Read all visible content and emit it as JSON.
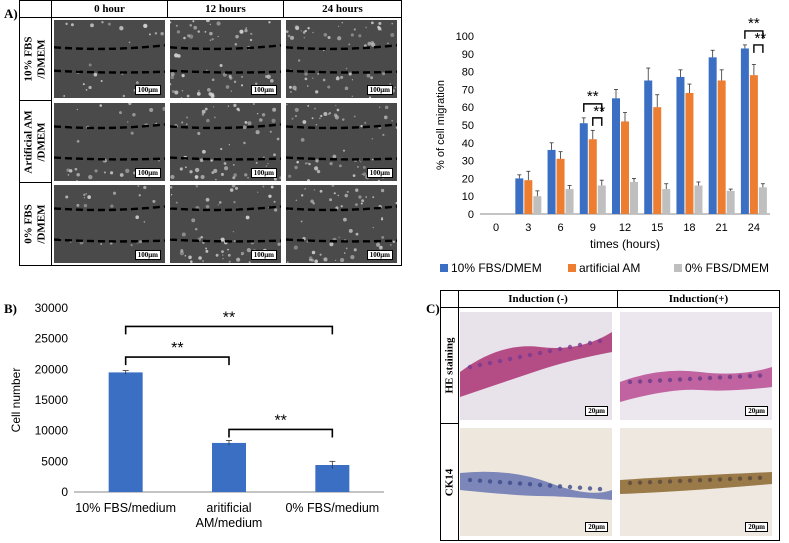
{
  "panel_a": {
    "letter": "A)",
    "headers": [
      "0 hour",
      "12 hours",
      "24 hours"
    ],
    "rows": [
      "10% FBS\n/DMEM",
      "Artificial AM\n/DMEM",
      "0% FBS\n/DMEM"
    ],
    "scale_label": "100μm"
  },
  "panel_b": {
    "letter": "B)"
  },
  "panel_c": {
    "letter": "C)",
    "headers": [
      "Induction (-)",
      "Induction(+)"
    ],
    "rows": [
      "HE staining",
      "CK14"
    ],
    "scale_label": "20μm"
  },
  "colors": {
    "blue": "#3a6fc4",
    "orange": "#ed7d31",
    "gray": "#bfbfbf"
  },
  "chart_data": [
    {
      "type": "bar",
      "title": "",
      "xlabel": "times (hours)",
      "ylabel": "% of cell migration",
      "ylim": [
        0,
        100
      ],
      "yticks": [
        0,
        10,
        20,
        30,
        40,
        50,
        60,
        70,
        80,
        90,
        100
      ],
      "categories": [
        "0",
        "3",
        "6",
        "9",
        "12",
        "15",
        "18",
        "21",
        "24"
      ],
      "series": [
        {
          "name": "10% FBS/DMEM",
          "values": [
            0,
            20,
            36,
            51,
            65,
            75,
            77,
            88,
            93
          ],
          "errors": [
            0,
            2,
            4,
            3,
            5,
            7,
            4,
            4,
            2
          ]
        },
        {
          "name": "artificial AM",
          "values": [
            0,
            19,
            31,
            42,
            52,
            60,
            68,
            75,
            78
          ],
          "errors": [
            0,
            5,
            4,
            5,
            5,
            7,
            5,
            6,
            6
          ]
        },
        {
          "name": "0% FBS/DMEM",
          "values": [
            0,
            10,
            14,
            16,
            18,
            14,
            16,
            13,
            15
          ],
          "errors": [
            0,
            3,
            2,
            3,
            2,
            3,
            2,
            1,
            2
          ]
        }
      ],
      "significance": [
        {
          "at": "9",
          "labels": [
            "**",
            "**"
          ]
        },
        {
          "at": "24",
          "labels": [
            "**",
            "**"
          ]
        }
      ]
    },
    {
      "type": "bar",
      "title": "",
      "xlabel": "",
      "ylabel": "Cell number",
      "ylim": [
        0,
        30000
      ],
      "yticks": [
        0,
        5000,
        10000,
        15000,
        20000,
        25000,
        30000
      ],
      "categories": [
        "10% FBS/medium",
        "aritificial\nAM/medium",
        "0% FBS/medium"
      ],
      "values": [
        19500,
        8000,
        4400
      ],
      "errors": [
        300,
        400,
        600
      ],
      "significance": [
        {
          "from": 0,
          "to": 2,
          "label": "**"
        },
        {
          "from": 0,
          "to": 1,
          "label": "**"
        },
        {
          "from": 1,
          "to": 2,
          "label": "**"
        }
      ]
    }
  ]
}
